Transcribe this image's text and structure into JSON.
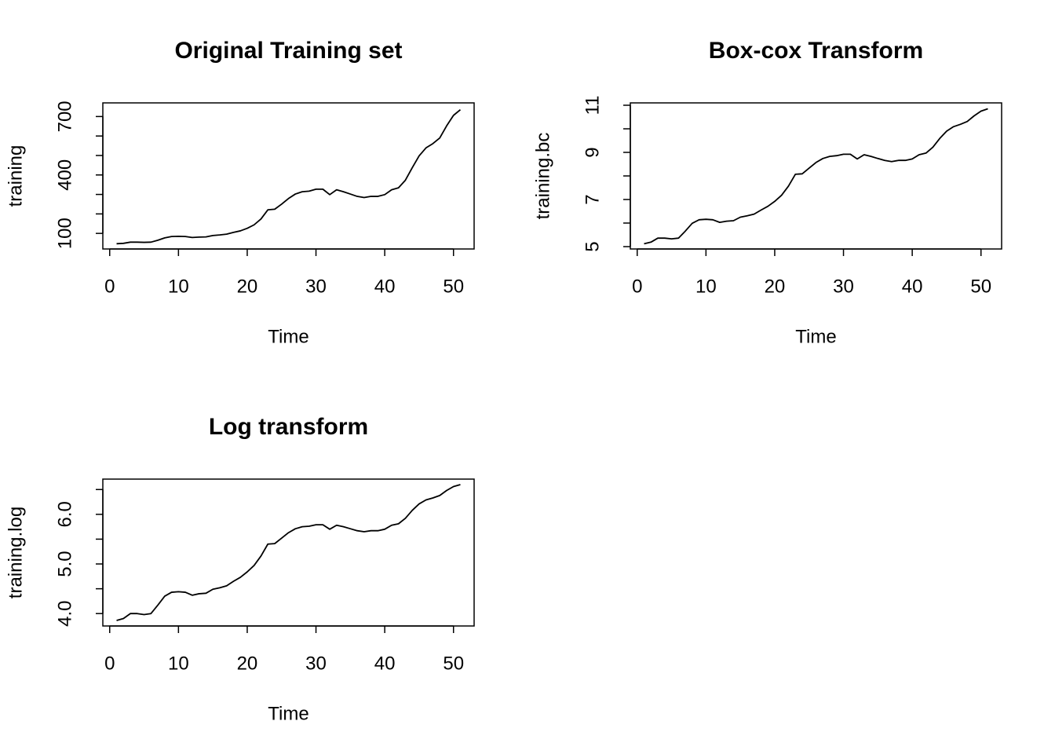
{
  "chart_data": [
    {
      "type": "line",
      "title": "Original Training set",
      "xlabel": "Time",
      "ylabel": "training",
      "color": "#000000",
      "x": [
        1,
        2,
        3,
        4,
        5,
        6,
        7,
        8,
        9,
        10,
        11,
        12,
        13,
        14,
        15,
        16,
        17,
        18,
        19,
        20,
        21,
        22,
        23,
        24,
        25,
        26,
        27,
        28,
        29,
        30,
        31,
        32,
        33,
        34,
        35,
        36,
        37,
        38,
        39,
        40,
        41,
        42,
        43,
        44,
        45,
        46,
        47,
        48,
        49,
        50,
        51
      ],
      "values": [
        47,
        49,
        55,
        55,
        54,
        55,
        65,
        77,
        84,
        85,
        84,
        79,
        81,
        82,
        89,
        92,
        96,
        105,
        113,
        126,
        144,
        174,
        221,
        224,
        250,
        279,
        302,
        314,
        317,
        327,
        327,
        299,
        324,
        314,
        302,
        290,
        284,
        290,
        290,
        299,
        324,
        334,
        373,
        437,
        498,
        539,
        561,
        590,
        652,
        706,
        735
      ],
      "xlim": [
        -1,
        53
      ],
      "xticks": [
        0,
        10,
        20,
        30,
        40,
        50
      ],
      "ylim": [
        20,
        770
      ],
      "yticks": [
        100,
        400,
        700
      ],
      "yticks_unlabeled": [
        200,
        300,
        500,
        600
      ]
    },
    {
      "type": "line",
      "title": "Box-cox Transform",
      "xlabel": "Time",
      "ylabel": "training.bc",
      "color": "#000000",
      "x": [
        1,
        2,
        3,
        4,
        5,
        6,
        7,
        8,
        9,
        10,
        11,
        12,
        13,
        14,
        15,
        16,
        17,
        18,
        19,
        20,
        21,
        22,
        23,
        24,
        25,
        26,
        27,
        28,
        29,
        30,
        31,
        32,
        33,
        34,
        35,
        36,
        37,
        38,
        39,
        40,
        41,
        42,
        43,
        44,
        45,
        46,
        47,
        48,
        49,
        50,
        51
      ],
      "values": [
        5.12,
        5.19,
        5.36,
        5.36,
        5.33,
        5.36,
        5.66,
        5.99,
        6.14,
        6.16,
        6.14,
        6.03,
        6.08,
        6.1,
        6.25,
        6.31,
        6.38,
        6.55,
        6.71,
        6.92,
        7.18,
        7.57,
        8.07,
        8.09,
        8.33,
        8.57,
        8.74,
        8.83,
        8.86,
        8.92,
        8.92,
        8.72,
        8.9,
        8.83,
        8.74,
        8.66,
        8.61,
        8.66,
        8.66,
        8.72,
        8.9,
        8.97,
        9.22,
        9.59,
        9.9,
        10.09,
        10.19,
        10.31,
        10.55,
        10.75,
        10.85
      ],
      "xlim": [
        -1,
        53
      ],
      "xticks": [
        0,
        10,
        20,
        30,
        40,
        50
      ],
      "ylim": [
        4.9,
        11.1
      ],
      "yticks": [
        5,
        7,
        9,
        11
      ],
      "yticks_unlabeled": [
        6,
        8,
        10
      ]
    },
    {
      "type": "line",
      "title": "Log transform",
      "xlabel": "Time",
      "ylabel": "training.log",
      "color": "#000000",
      "x": [
        1,
        2,
        3,
        4,
        5,
        6,
        7,
        8,
        9,
        10,
        11,
        12,
        13,
        14,
        15,
        16,
        17,
        18,
        19,
        20,
        21,
        22,
        23,
        24,
        25,
        26,
        27,
        28,
        29,
        30,
        31,
        32,
        33,
        34,
        35,
        36,
        37,
        38,
        39,
        40,
        41,
        42,
        43,
        44,
        45,
        46,
        47,
        48,
        49,
        50,
        51
      ],
      "values": [
        3.86,
        3.9,
        4.0,
        4.0,
        3.98,
        4.0,
        4.17,
        4.35,
        4.43,
        4.44,
        4.43,
        4.37,
        4.4,
        4.41,
        4.49,
        4.52,
        4.56,
        4.65,
        4.73,
        4.84,
        4.97,
        5.16,
        5.4,
        5.41,
        5.52,
        5.63,
        5.71,
        5.75,
        5.76,
        5.79,
        5.79,
        5.7,
        5.78,
        5.75,
        5.71,
        5.67,
        5.65,
        5.67,
        5.67,
        5.7,
        5.78,
        5.81,
        5.92,
        6.08,
        6.21,
        6.29,
        6.33,
        6.38,
        6.48,
        6.56,
        6.6
      ],
      "xlim": [
        -1,
        53
      ],
      "xticks": [
        0,
        10,
        20,
        30,
        40,
        50
      ],
      "ylim": [
        3.75,
        6.71
      ],
      "yticks": [
        {
          "value": 4,
          "label": "4.0"
        },
        {
          "value": 5,
          "label": "5.0"
        },
        {
          "value": 6,
          "label": "6.0"
        }
      ],
      "yticks_unlabeled": [
        4.5,
        5.5,
        6.5
      ]
    }
  ]
}
